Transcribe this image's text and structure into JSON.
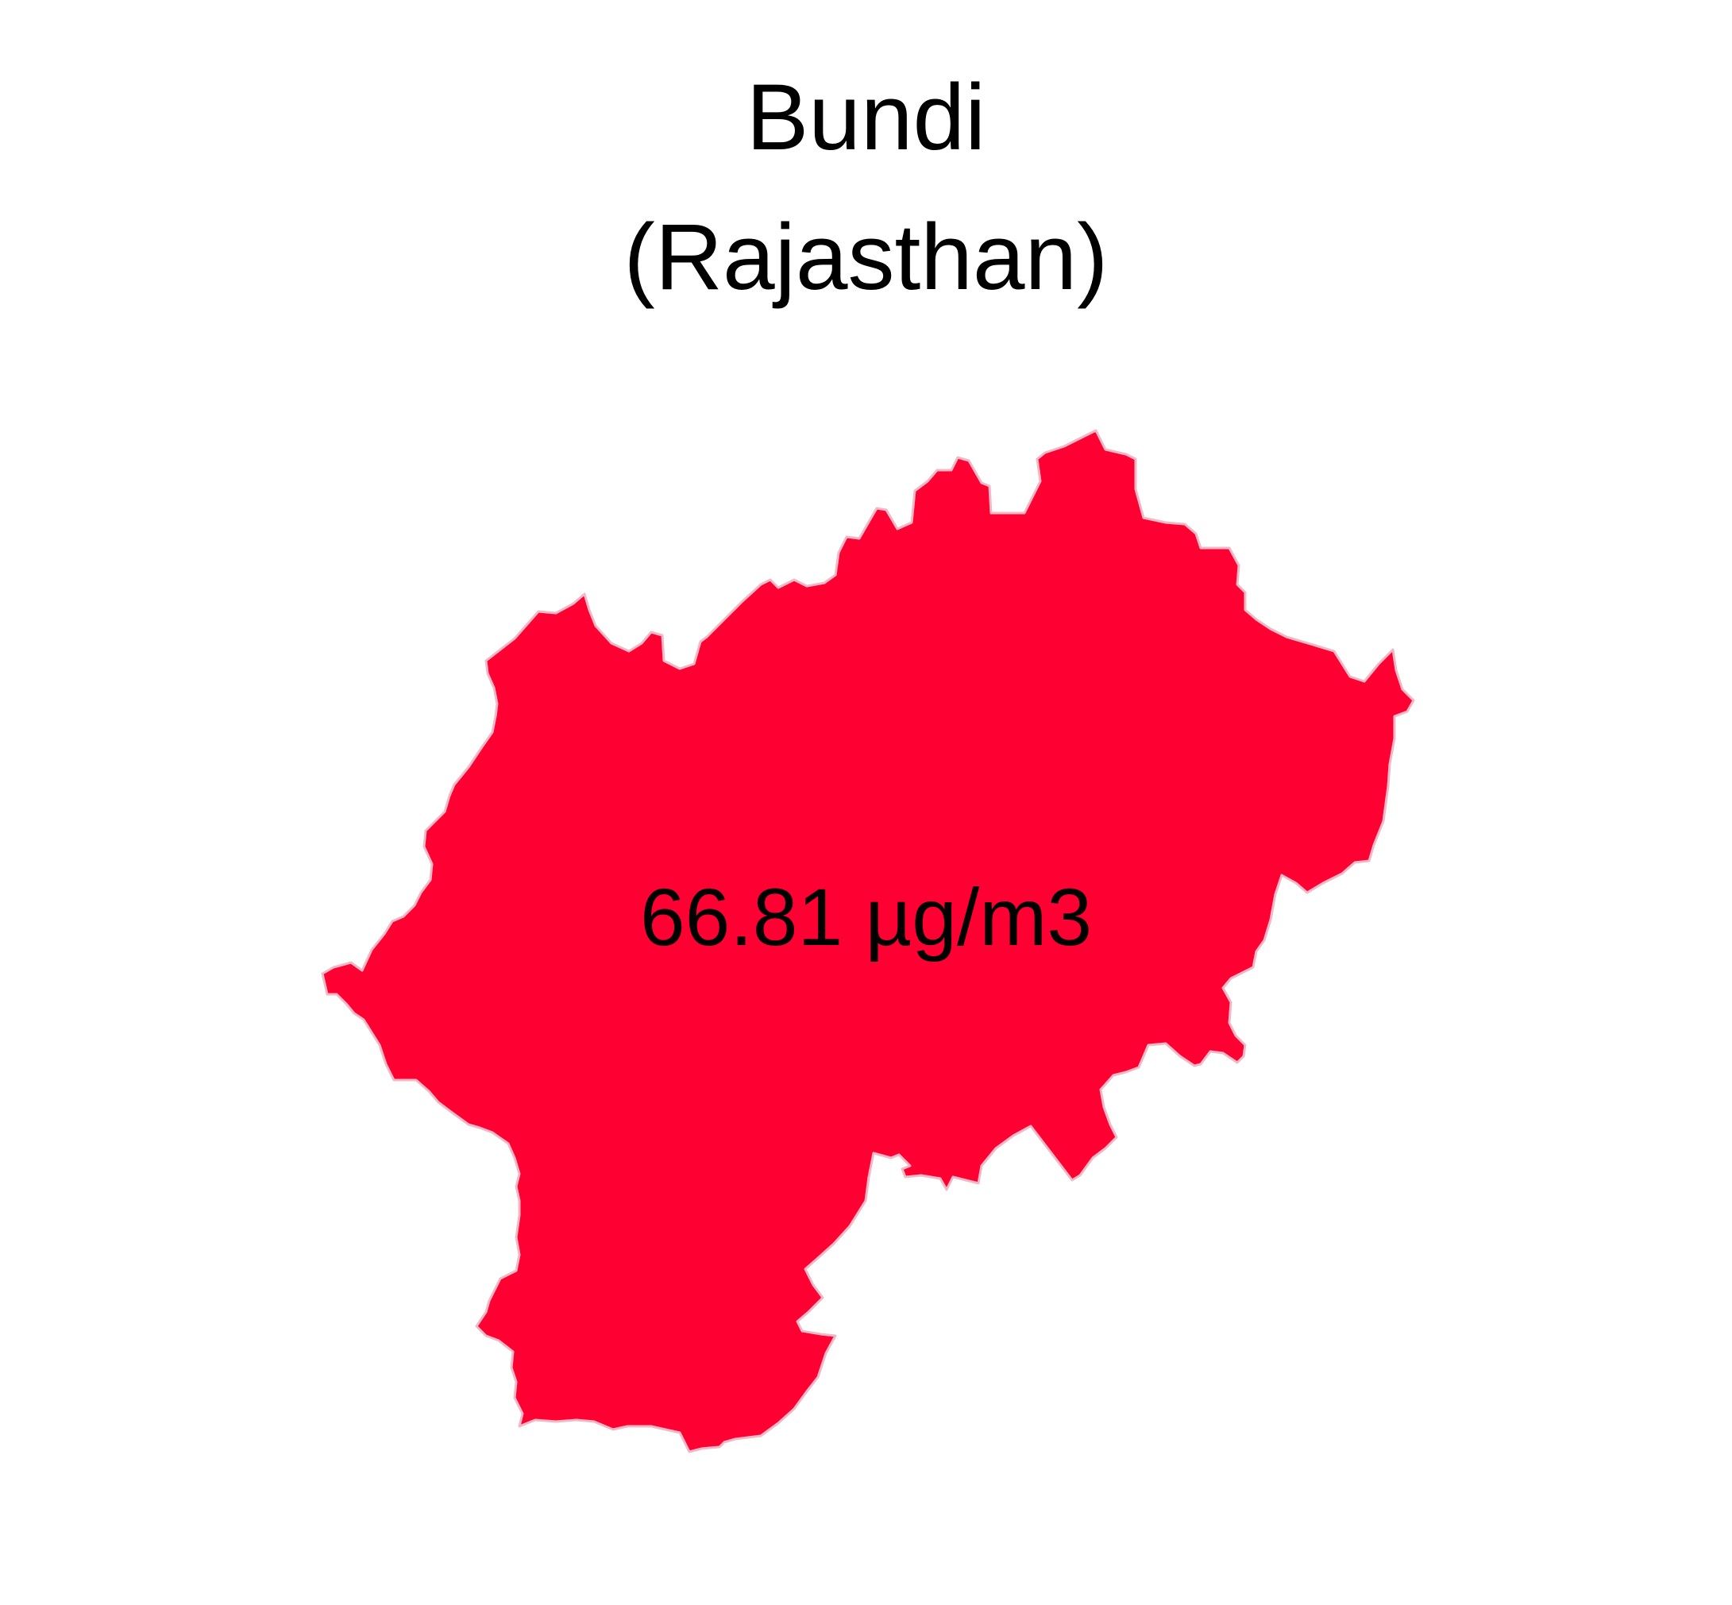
{
  "map": {
    "region_name": "Bundi",
    "state_name": "(Rajasthan)",
    "value_label": "66.81 µg/m3",
    "fill_color": "#ff0033",
    "border_color": "#f2b8c6",
    "background_color": "#ffffff"
  }
}
